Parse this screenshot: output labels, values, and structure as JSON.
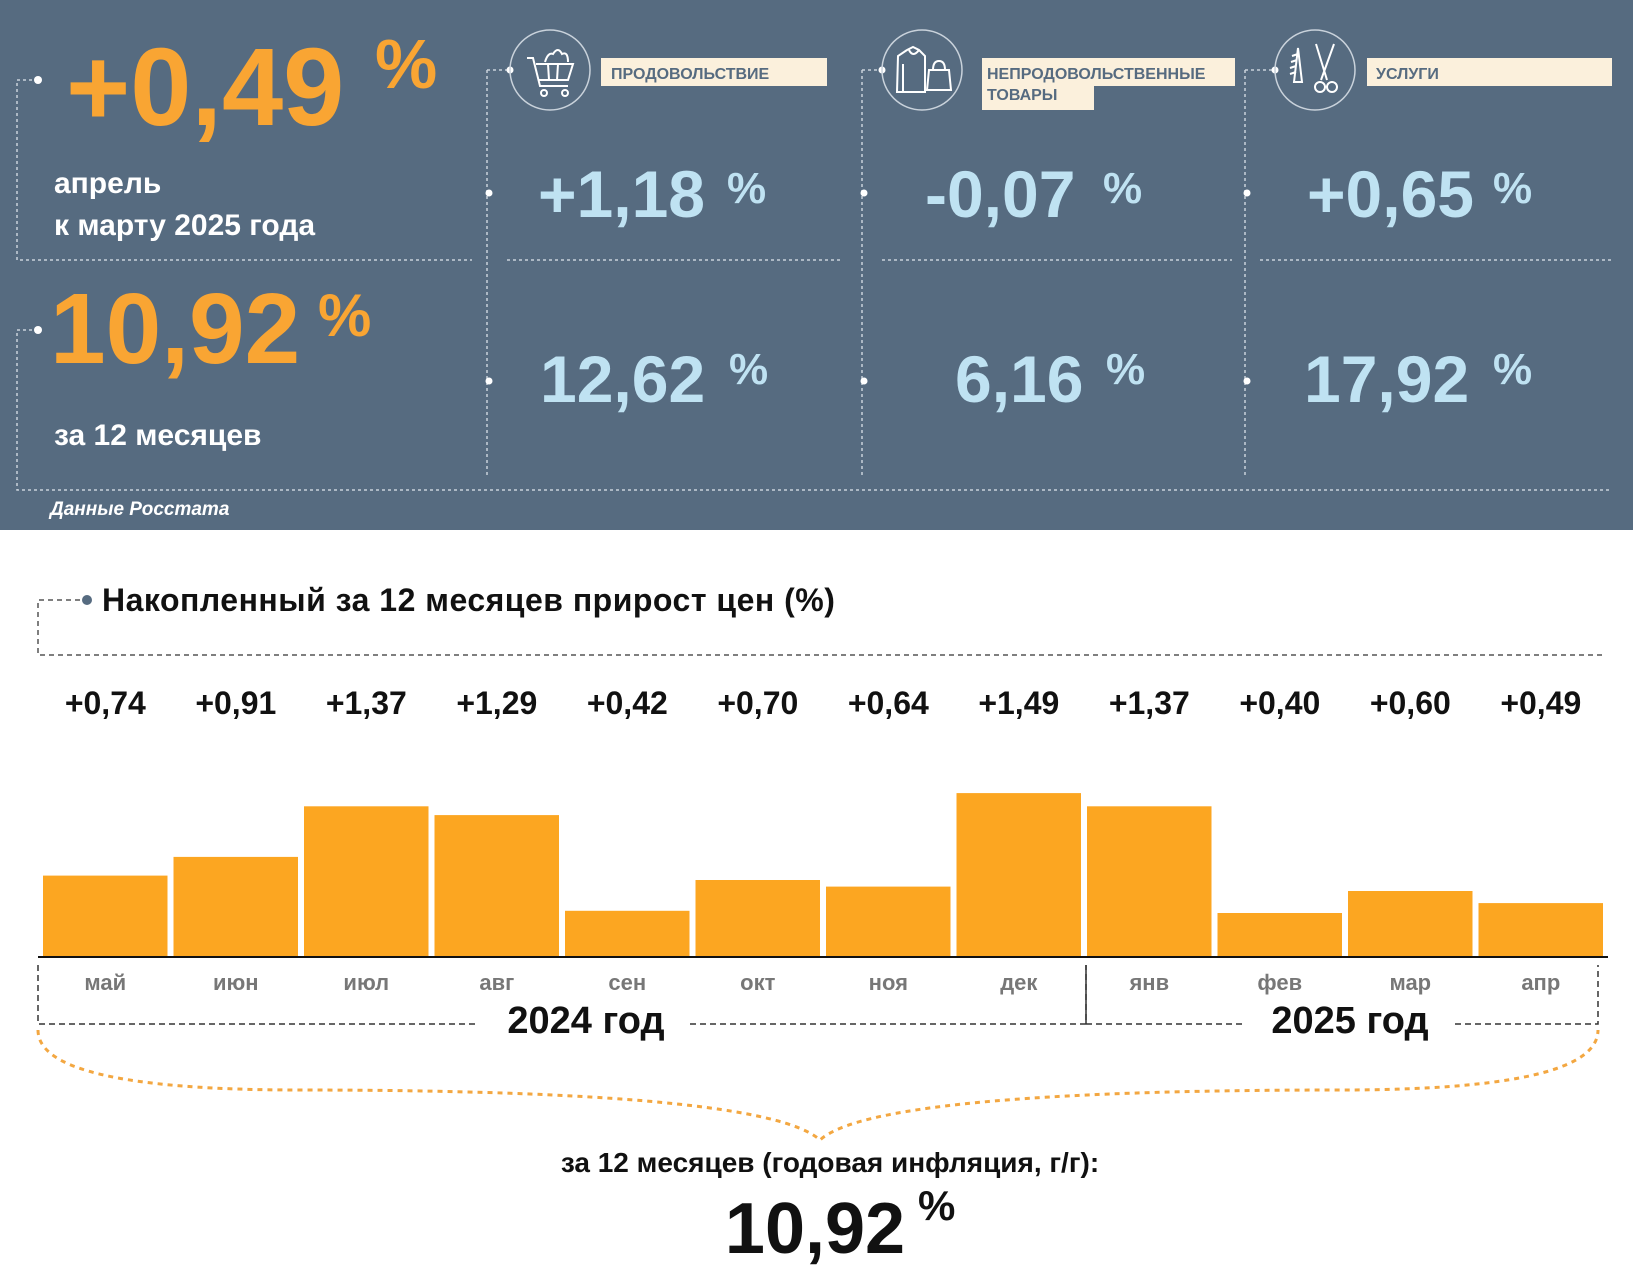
{
  "colors": {
    "panel_bg": "#566b80",
    "orange": "#f9a533",
    "light_blue": "#bfe2f2",
    "label_bg": "#fbf0dc",
    "bar": "#fca621",
    "text_dark": "#111111",
    "month_gray": "#777777"
  },
  "summary": {
    "monthly": {
      "value": "+0,49",
      "unit": "%",
      "caption_line1": "апрель",
      "caption_line2": "к марту 2025 года"
    },
    "annual": {
      "value": "10,92",
      "unit": "%",
      "caption": "за 12 месяцев"
    },
    "source": "Данные Росстата"
  },
  "categories": [
    {
      "icon": "shopping-cart-icon",
      "label_line1": "ПРОДОВОЛЬСТВИЕ",
      "label_line2": "",
      "monthly": "+1,18",
      "annual": "12,62",
      "unit": "%"
    },
    {
      "icon": "clothing-icon",
      "label_line1": "НЕПРОДОВОЛЬСТВЕННЫЕ",
      "label_line2": "ТОВАРЫ",
      "monthly": "-0,07",
      "annual": "6,16",
      "unit": "%"
    },
    {
      "icon": "scissors-comb-icon",
      "label_line1": "УСЛУГИ",
      "label_line2": "",
      "monthly": "+0,65",
      "annual": "17,92",
      "unit": "%"
    }
  ],
  "chart_data": {
    "type": "bar",
    "title": "Накопленный за 12 месяцев прирост цен (%)",
    "categories": [
      "май",
      "июн",
      "июл",
      "авг",
      "сен",
      "окт",
      "ноя",
      "дек",
      "янв",
      "фев",
      "мар",
      "апр"
    ],
    "values": [
      0.74,
      0.91,
      1.37,
      1.29,
      0.42,
      0.7,
      0.64,
      1.49,
      1.37,
      0.4,
      0.6,
      0.49
    ],
    "value_labels": [
      "+0,74",
      "+0,91",
      "+1,37",
      "+1,29",
      "+0,42",
      "+0,70",
      "+0,64",
      "+1,49",
      "+1,37",
      "+0,40",
      "+0,60",
      "+0,49"
    ],
    "ylim": [
      0,
      1.5
    ],
    "years": [
      "2024 год",
      "2025 год"
    ],
    "total_caption": "за 12 месяцев (годовая инфляция, г/г):",
    "total_value": "10,92",
    "total_unit": "%"
  }
}
